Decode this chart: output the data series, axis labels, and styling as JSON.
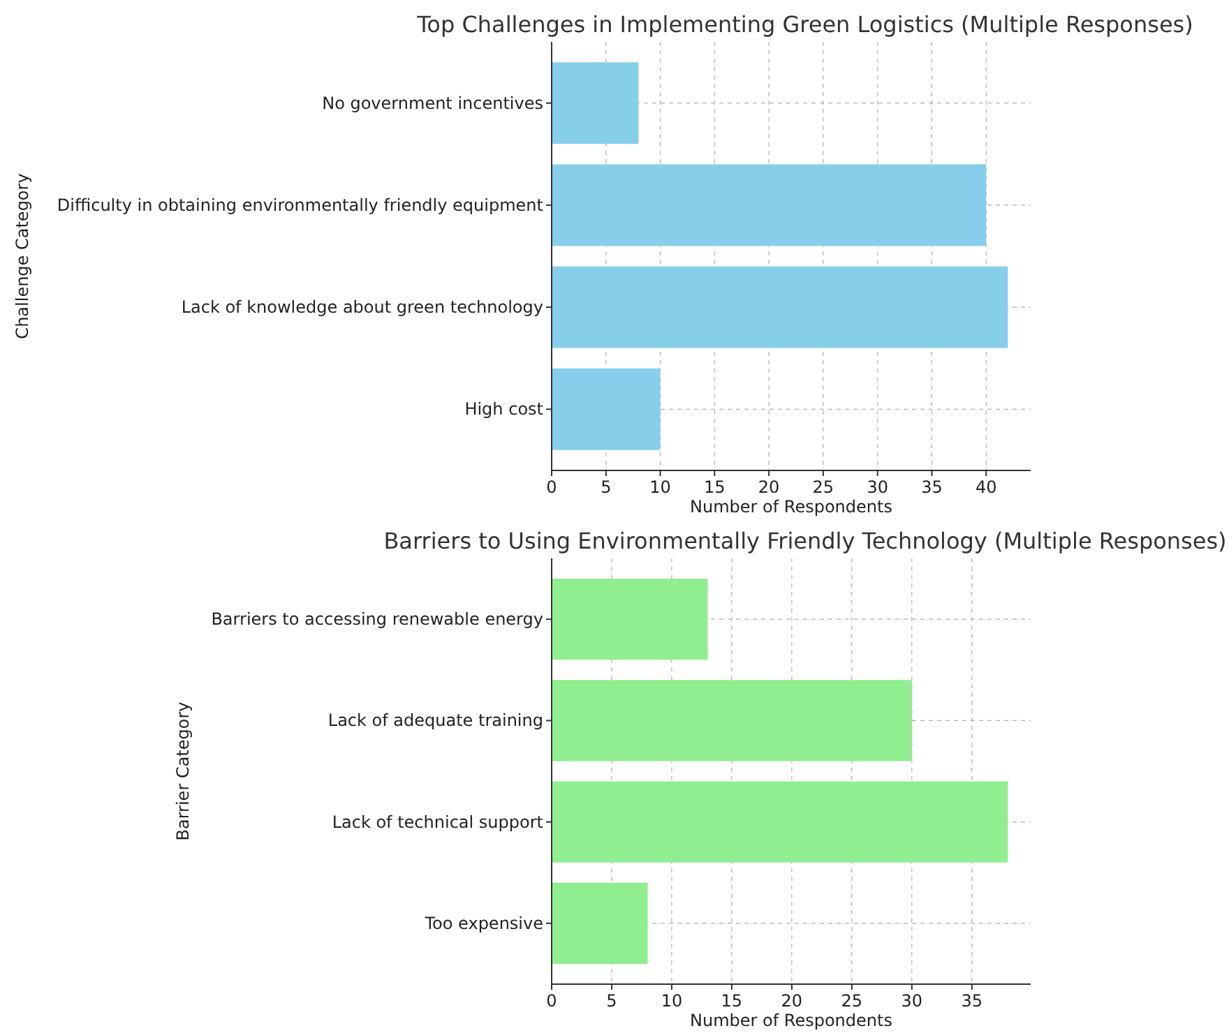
{
  "chart_data": [
    {
      "type": "bar",
      "orientation": "horizontal",
      "title": "Top Challenges in Implementing Green Logistics (Multiple Responses)",
      "xlabel": "Number of Respondents",
      "ylabel": "Challenge Category",
      "categories": [
        "No government incentives",
        "Difficulty in obtaining environmentally friendly equipment",
        "Lack of knowledge about green technology",
        "High cost"
      ],
      "values": [
        8,
        40,
        42,
        10
      ],
      "color": "#87ceeb",
      "xlim": [
        0,
        44.1
      ],
      "xticks": [
        0,
        5,
        10,
        15,
        20,
        25,
        30,
        35,
        40
      ],
      "grid": true
    },
    {
      "type": "bar",
      "orientation": "horizontal",
      "title": "Barriers to Using Environmentally Friendly Technology (Multiple Responses)",
      "xlabel": "Number of Respondents",
      "ylabel": "Barrier Category",
      "categories": [
        "Barriers to accessing renewable energy",
        "Lack of adequate training",
        "Lack of technical support",
        "Too expensive"
      ],
      "values": [
        13,
        30,
        38,
        8
      ],
      "color": "#90ee90",
      "xlim": [
        0,
        39.9
      ],
      "xticks": [
        0,
        5,
        10,
        15,
        20,
        25,
        30,
        35
      ],
      "grid": true
    }
  ]
}
